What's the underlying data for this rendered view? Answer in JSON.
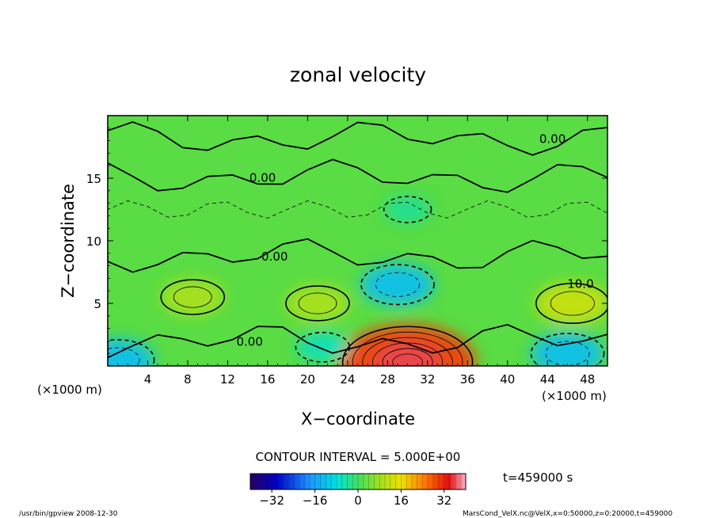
{
  "chart_data": {
    "type": "heatmap",
    "title": "zonal velocity",
    "xlabel": "X−coordinate",
    "ylabel": "Z−coordinate",
    "x_units": "(×1000 m)",
    "z_units": "(×1000 m)",
    "xlim": [
      0,
      50
    ],
    "zlim": [
      0,
      20
    ],
    "x_ticks": [
      "4",
      "8",
      "12",
      "16",
      "20",
      "24",
      "28",
      "32",
      "36",
      "40",
      "44",
      "48"
    ],
    "z_ticks": [
      "5",
      "10",
      "15"
    ],
    "contour_interval": "CONTOUR INTERVAL = 5.000E+00",
    "contour_labels": [
      {
        "text": "0.00",
        "x": 44.5,
        "z": 18.2
      },
      {
        "text": "0.00",
        "x": 15.5,
        "z": 15.1
      },
      {
        "text": "0.00",
        "x": 16.7,
        "z": 8.8
      },
      {
        "text": "0.00",
        "x": 14.2,
        "z": 2.0
      },
      {
        "text": "10.0",
        "x": 47.3,
        "z": 6.6
      }
    ],
    "time_label": "t=459000 s",
    "colorbar": {
      "min": -40,
      "max": 40,
      "ticks": [
        "−32",
        "−16",
        "0",
        "16",
        "32"
      ],
      "tick_values": [
        -32,
        -16,
        0,
        16,
        32
      ]
    },
    "features": [
      {
        "x": 30,
        "z": 0.3,
        "value": 30
      },
      {
        "x": 29,
        "z": 6.5,
        "value": -12
      },
      {
        "x": 8.5,
        "z": 5.5,
        "value": 9
      },
      {
        "x": 21,
        "z": 5.0,
        "value": 9
      },
      {
        "x": 46.5,
        "z": 5.0,
        "value": 12
      },
      {
        "x": 46,
        "z": 1.0,
        "value": -12
      },
      {
        "x": 1,
        "z": 0.5,
        "value": -12
      },
      {
        "x": 21.5,
        "z": 1.5,
        "value": -6
      },
      {
        "x": 30,
        "z": 12.5,
        "value": -4
      }
    ]
  },
  "footer": {
    "left": "/usr/bin/gpview   2008-12-30",
    "right": "MarsCond_VelX.nc@VelX,x=0:50000,z=0:20000,t=459000"
  }
}
